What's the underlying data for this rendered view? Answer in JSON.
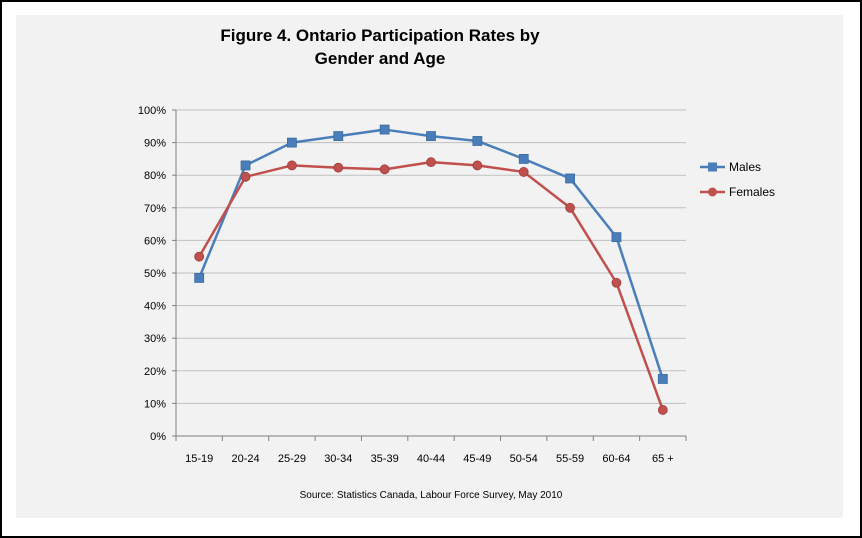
{
  "chart_data": {
    "type": "line",
    "title": "Figure 4. Ontario Participation Rates by Gender and Age",
    "title_lines": [
      "Figure 4. Ontario Participation Rates by",
      "Gender and Age"
    ],
    "source": "Source: Statistics Canada, Labour Force Survey, May 2010",
    "categories": [
      "15-19",
      "20-24",
      "25-29",
      "30-34",
      "35-39",
      "40-44",
      "45-49",
      "50-54",
      "55-59",
      "60-64",
      "65 +"
    ],
    "y_ticks": [
      "0%",
      "10%",
      "20%",
      "30%",
      "40%",
      "50%",
      "60%",
      "70%",
      "80%",
      "90%",
      "100%"
    ],
    "ylim": [
      0,
      100
    ],
    "grid": true,
    "legend_position": "right",
    "series": [
      {
        "name": "Males",
        "color": "#4a7ebb",
        "marker": "square",
        "values": [
          48.5,
          83,
          90,
          92,
          94,
          92,
          90.5,
          85,
          79,
          61,
          17.5
        ]
      },
      {
        "name": "Females",
        "color": "#c0504d",
        "marker": "circle",
        "values": [
          55,
          79.5,
          83,
          82.3,
          81.8,
          84,
          83,
          81,
          70,
          47,
          8
        ]
      }
    ]
  }
}
